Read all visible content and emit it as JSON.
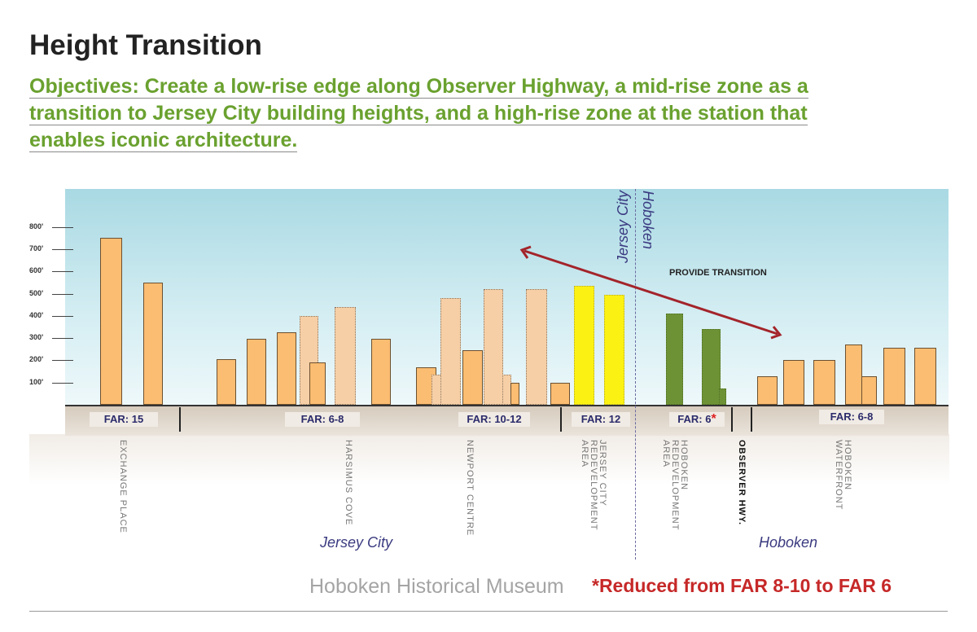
{
  "title": "Height Transition",
  "objectives": [
    "Objectives: Create a low-rise edge along Observer Highway, a mid-rise zone as a",
    "transition to Jersey City building heights, and a high-rise zone at the station that",
    "enables iconic architecture."
  ],
  "y_ticks": [
    "800'",
    "700'",
    "600'",
    "500'",
    "400'",
    "300'",
    "200'",
    "100'"
  ],
  "far_labels": [
    "FAR: 15",
    "FAR: 6-8",
    "FAR: 10-12",
    "FAR: 12",
    "FAR: 6",
    "FAR: 6-8"
  ],
  "far_asterisk": "*",
  "areas": [
    "EXCHANGE PLACE",
    "HARSIMUS COVE",
    "NEWPORT CENTRE",
    "JERSEY CITY REDEVELOPMENT AREA",
    "HOBOKEN REDEVELOPMENT AREA",
    "OBSERVER HWY.",
    "HOBOKEN WATERFRONT"
  ],
  "city_labels": {
    "jersey_city": "Jersey City",
    "hoboken": "Hoboken"
  },
  "transition_label": "PROVIDE TRANSITION",
  "footnote": "*Reduced from FAR 8-10 to FAR 6",
  "watermark": "Hoboken Historical Museum",
  "building_heights_ft": [
    750,
    550,
    205,
    295,
    325,
    400,
    190,
    440,
    295,
    170,
    135,
    480,
    245,
    520,
    135,
    100,
    520,
    100,
    535,
    495,
    410,
    340,
    75,
    130,
    200,
    200,
    270,
    130,
    255,
    255
  ],
  "colors": {
    "existing": "#fbbd72",
    "proposed": "#f6cfa6",
    "jersey_city_redevelopment": "#fbf213",
    "hoboken_redevelopment": "#6d9236",
    "arrow": "#a3242a",
    "objectives": "#6aa12f"
  }
}
